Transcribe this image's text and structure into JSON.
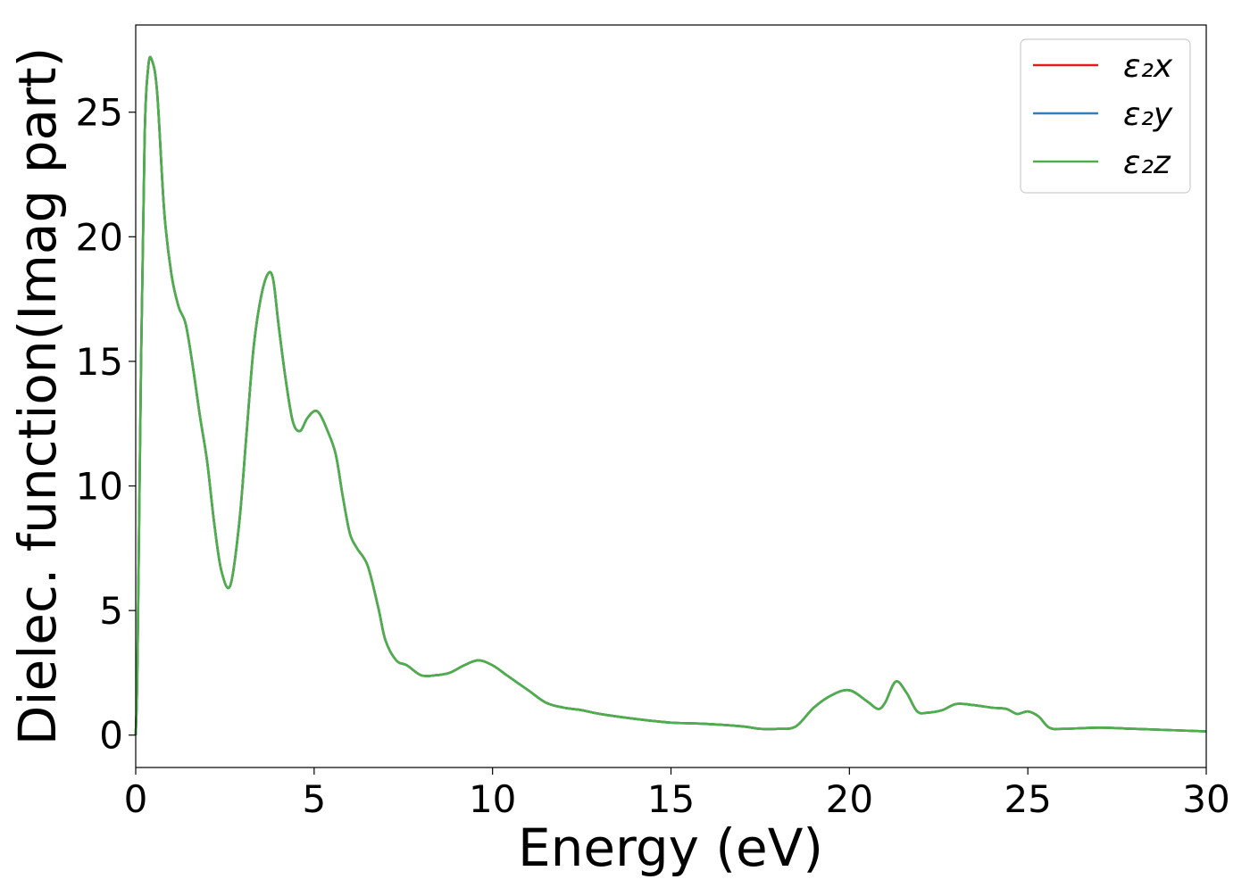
{
  "chart_data": {
    "type": "line",
    "title": "",
    "xlabel": "Energy (eV)",
    "ylabel": "Dielec. function(Imag part)",
    "xlim": [
      0,
      30
    ],
    "ylim": [
      -1.3,
      28.5
    ],
    "xticks": [
      0,
      5,
      10,
      15,
      20,
      25,
      30
    ],
    "yticks": [
      0,
      5,
      10,
      15,
      20,
      25
    ],
    "grid": false,
    "legend_position": "top-right",
    "x": [
      0,
      0.05,
      0.15,
      0.25,
      0.35,
      0.45,
      0.6,
      0.8,
      1.0,
      1.2,
      1.4,
      1.6,
      1.8,
      2.0,
      2.2,
      2.4,
      2.65,
      2.9,
      3.1,
      3.3,
      3.5,
      3.7,
      3.85,
      4.0,
      4.2,
      4.4,
      4.6,
      4.8,
      5.0,
      5.15,
      5.35,
      5.6,
      5.8,
      6.0,
      6.2,
      6.5,
      6.8,
      7.0,
      7.3,
      7.6,
      8.0,
      8.4,
      8.8,
      9.2,
      9.6,
      10.0,
      10.4,
      11.0,
      11.5,
      12.0,
      12.5,
      13.0,
      14.0,
      15.0,
      16.0,
      17.0,
      17.5,
      18.0,
      18.5,
      19.0,
      19.5,
      20.0,
      20.5,
      20.8,
      21.0,
      21.3,
      21.6,
      21.9,
      22.2,
      22.6,
      23.0,
      23.5,
      24.0,
      24.4,
      24.7,
      25.0,
      25.3,
      25.6,
      26.0,
      27.0,
      28.0,
      29.0,
      30.0
    ],
    "series": [
      {
        "name": "ε₂x",
        "color": "#e41a1c",
        "values": [
          0,
          3,
          15,
          24,
          26.8,
          27.1,
          25.8,
          21.0,
          18.5,
          17.2,
          16.5,
          14.8,
          12.8,
          11.0,
          8.5,
          6.6,
          6.0,
          8.5,
          12.0,
          15.5,
          17.5,
          18.5,
          18.3,
          16.5,
          14.3,
          12.6,
          12.2,
          12.7,
          13.0,
          12.9,
          12.3,
          11.3,
          9.6,
          8.1,
          7.5,
          6.8,
          5.1,
          3.8,
          3.0,
          2.8,
          2.4,
          2.4,
          2.5,
          2.8,
          3.0,
          2.8,
          2.4,
          1.8,
          1.3,
          1.1,
          1.0,
          0.85,
          0.65,
          0.5,
          0.45,
          0.35,
          0.25,
          0.25,
          0.35,
          1.1,
          1.6,
          1.8,
          1.35,
          1.05,
          1.3,
          2.15,
          1.7,
          0.95,
          0.9,
          1.0,
          1.25,
          1.2,
          1.1,
          1.05,
          0.85,
          0.95,
          0.75,
          0.3,
          0.25,
          0.3,
          0.25,
          0.2,
          0.15
        ]
      },
      {
        "name": "ε₂y",
        "color": "#377eb8",
        "values": [
          0,
          3,
          15,
          24,
          26.8,
          27.1,
          25.8,
          21.0,
          18.5,
          17.2,
          16.5,
          14.8,
          12.8,
          11.0,
          8.5,
          6.6,
          6.0,
          8.5,
          12.0,
          15.5,
          17.5,
          18.5,
          18.3,
          16.5,
          14.3,
          12.6,
          12.2,
          12.7,
          13.0,
          12.9,
          12.3,
          11.3,
          9.6,
          8.1,
          7.5,
          6.8,
          5.1,
          3.8,
          3.0,
          2.8,
          2.4,
          2.4,
          2.5,
          2.8,
          3.0,
          2.8,
          2.4,
          1.8,
          1.3,
          1.1,
          1.0,
          0.85,
          0.65,
          0.5,
          0.45,
          0.35,
          0.25,
          0.25,
          0.35,
          1.1,
          1.6,
          1.8,
          1.35,
          1.05,
          1.3,
          2.15,
          1.7,
          0.95,
          0.9,
          1.0,
          1.25,
          1.2,
          1.1,
          1.05,
          0.85,
          0.95,
          0.75,
          0.3,
          0.25,
          0.3,
          0.25,
          0.2,
          0.15
        ]
      },
      {
        "name": "ε₂z",
        "color": "#4daf4a",
        "values": [
          0,
          3,
          15,
          24,
          26.8,
          27.1,
          25.8,
          21.0,
          18.5,
          17.2,
          16.5,
          14.8,
          12.8,
          11.0,
          8.5,
          6.6,
          6.0,
          8.5,
          12.0,
          15.5,
          17.5,
          18.5,
          18.3,
          16.5,
          14.3,
          12.6,
          12.2,
          12.7,
          13.0,
          12.9,
          12.3,
          11.3,
          9.6,
          8.1,
          7.5,
          6.8,
          5.1,
          3.8,
          3.0,
          2.8,
          2.4,
          2.4,
          2.5,
          2.8,
          3.0,
          2.8,
          2.4,
          1.8,
          1.3,
          1.1,
          1.0,
          0.85,
          0.65,
          0.5,
          0.45,
          0.35,
          0.25,
          0.25,
          0.35,
          1.1,
          1.6,
          1.8,
          1.35,
          1.05,
          1.3,
          2.15,
          1.7,
          0.95,
          0.9,
          1.0,
          1.25,
          1.2,
          1.1,
          1.05,
          0.85,
          0.95,
          0.75,
          0.3,
          0.25,
          0.3,
          0.25,
          0.2,
          0.15
        ]
      }
    ]
  }
}
